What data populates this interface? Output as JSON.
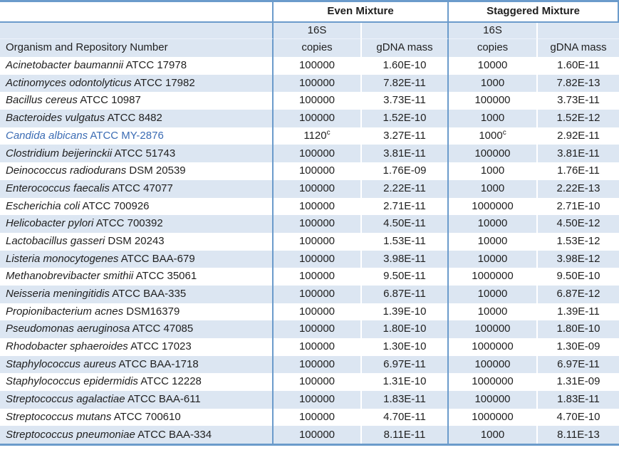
{
  "colors": {
    "border_blue": "#6b9bcb",
    "stripe_blue": "#dce6f2",
    "accent_blue": "#3b6cb4",
    "text": "#1f1f1f"
  },
  "table": {
    "organism_header": "Organism and Repository Number",
    "group_headers": {
      "even": "Even Mixture",
      "staggered": "Staggered Mixture"
    },
    "subheader_16s": "16S",
    "copies_label": "copies",
    "gdna_label": "gDNA mass",
    "rows": [
      {
        "genus_species": "Acinetobacter baumannii",
        "repository": "ATCC 17978",
        "even_copies": "100000",
        "even_copies_sup": "",
        "even_mass": "1.60E-10",
        "stag_copies": "10000",
        "stag_copies_sup": "",
        "stag_mass": "1.60E-11",
        "accent": false
      },
      {
        "genus_species": "Actinomyces odontolyticus",
        "repository": "ATCC 17982",
        "even_copies": "100000",
        "even_copies_sup": "",
        "even_mass": "7.82E-11",
        "stag_copies": "1000",
        "stag_copies_sup": "",
        "stag_mass": "7.82E-13",
        "accent": false
      },
      {
        "genus_species": "Bacillus cereus",
        "repository": "ATCC 10987",
        "even_copies": "100000",
        "even_copies_sup": "",
        "even_mass": "3.73E-11",
        "stag_copies": "100000",
        "stag_copies_sup": "",
        "stag_mass": "3.73E-11",
        "accent": false
      },
      {
        "genus_species": "Bacteroides vulgatus",
        "repository": "ATCC 8482",
        "even_copies": "100000",
        "even_copies_sup": "",
        "even_mass": "1.52E-10",
        "stag_copies": "1000",
        "stag_copies_sup": "",
        "stag_mass": "1.52E-12",
        "accent": false
      },
      {
        "genus_species": "Candida albicans",
        "repository": "ATCC MY-2876",
        "even_copies": "1120",
        "even_copies_sup": "c",
        "even_mass": "3.27E-11",
        "stag_copies": "1000",
        "stag_copies_sup": "c",
        "stag_mass": "2.92E-11",
        "accent": true
      },
      {
        "genus_species": "Clostridium beijerinckii",
        "repository": "ATCC 51743",
        "even_copies": "100000",
        "even_copies_sup": "",
        "even_mass": "3.81E-11",
        "stag_copies": "100000",
        "stag_copies_sup": "",
        "stag_mass": "3.81E-11",
        "accent": false
      },
      {
        "genus_species": "Deinococcus radiodurans",
        "repository": "DSM 20539",
        "even_copies": "100000",
        "even_copies_sup": "",
        "even_mass": "1.76E-09",
        "stag_copies": "1000",
        "stag_copies_sup": "",
        "stag_mass": "1.76E-11",
        "accent": false
      },
      {
        "genus_species": "Enterococcus faecalis",
        "repository": "ATCC 47077",
        "even_copies": "100000",
        "even_copies_sup": "",
        "even_mass": "2.22E-11",
        "stag_copies": "1000",
        "stag_copies_sup": "",
        "stag_mass": "2.22E-13",
        "accent": false
      },
      {
        "genus_species": "Escherichia coli",
        "repository": "ATCC 700926",
        "even_copies": "100000",
        "even_copies_sup": "",
        "even_mass": "2.71E-11",
        "stag_copies": "1000000",
        "stag_copies_sup": "",
        "stag_mass": "2.71E-10",
        "accent": false
      },
      {
        "genus_species": "Helicobacter pylori",
        "repository": "ATCC 700392",
        "even_copies": "100000",
        "even_copies_sup": "",
        "even_mass": "4.50E-11",
        "stag_copies": "10000",
        "stag_copies_sup": "",
        "stag_mass": "4.50E-12",
        "accent": false
      },
      {
        "genus_species": "Lactobacillus gasseri",
        "repository": "DSM 20243",
        "even_copies": "100000",
        "even_copies_sup": "",
        "even_mass": "1.53E-11",
        "stag_copies": "10000",
        "stag_copies_sup": "",
        "stag_mass": "1.53E-12",
        "accent": false
      },
      {
        "genus_species": "Listeria monocytogenes",
        "repository": "ATCC BAA-679",
        "even_copies": "100000",
        "even_copies_sup": "",
        "even_mass": "3.98E-11",
        "stag_copies": "10000",
        "stag_copies_sup": "",
        "stag_mass": "3.98E-12",
        "accent": false
      },
      {
        "genus_species": "Methanobrevibacter smithii",
        "repository": "ATCC 35061",
        "even_copies": "100000",
        "even_copies_sup": "",
        "even_mass": "9.50E-11",
        "stag_copies": "1000000",
        "stag_copies_sup": "",
        "stag_mass": "9.50E-10",
        "accent": false
      },
      {
        "genus_species": "Neisseria meningitidis",
        "repository": "ATCC BAA-335",
        "even_copies": "100000",
        "even_copies_sup": "",
        "even_mass": "6.87E-11",
        "stag_copies": "10000",
        "stag_copies_sup": "",
        "stag_mass": "6.87E-12",
        "accent": false
      },
      {
        "genus_species": "Propionibacterium acnes",
        "repository": "DSM16379",
        "even_copies": "100000",
        "even_copies_sup": "",
        "even_mass": "1.39E-10",
        "stag_copies": "10000",
        "stag_copies_sup": "",
        "stag_mass": "1.39E-11",
        "accent": false
      },
      {
        "genus_species": "Pseudomonas aeruginosa",
        "repository": "ATCC 47085",
        "even_copies": "100000",
        "even_copies_sup": "",
        "even_mass": "1.80E-10",
        "stag_copies": "100000",
        "stag_copies_sup": "",
        "stag_mass": "1.80E-10",
        "accent": false
      },
      {
        "genus_species": "Rhodobacter sphaeroides",
        "repository": "ATCC 17023",
        "even_copies": "100000",
        "even_copies_sup": "",
        "even_mass": "1.30E-10",
        "stag_copies": "1000000",
        "stag_copies_sup": "",
        "stag_mass": "1.30E-09",
        "accent": false
      },
      {
        "genus_species": "Staphylococcus aureus",
        "repository": "ATCC BAA-1718",
        "even_copies": "100000",
        "even_copies_sup": "",
        "even_mass": "6.97E-11",
        "stag_copies": "100000",
        "stag_copies_sup": "",
        "stag_mass": "6.97E-11",
        "accent": false
      },
      {
        "genus_species": "Staphylococcus epidermidis",
        "repository": "ATCC 12228",
        "even_copies": "100000",
        "even_copies_sup": "",
        "even_mass": "1.31E-10",
        "stag_copies": "1000000",
        "stag_copies_sup": "",
        "stag_mass": "1.31E-09",
        "accent": false
      },
      {
        "genus_species": "Streptococcus agalactiae",
        "repository": "ATCC BAA-611",
        "even_copies": "100000",
        "even_copies_sup": "",
        "even_mass": "1.83E-11",
        "stag_copies": "100000",
        "stag_copies_sup": "",
        "stag_mass": "1.83E-11",
        "accent": false
      },
      {
        "genus_species": "Streptococcus mutans",
        "repository": "ATCC 700610",
        "even_copies": "100000",
        "even_copies_sup": "",
        "even_mass": "4.70E-11",
        "stag_copies": "1000000",
        "stag_copies_sup": "",
        "stag_mass": "4.70E-10",
        "accent": false
      },
      {
        "genus_species": "Streptococcus pneumoniae",
        "repository": "ATCC BAA-334",
        "even_copies": "100000",
        "even_copies_sup": "",
        "even_mass": "8.11E-11",
        "stag_copies": "1000",
        "stag_copies_sup": "",
        "stag_mass": "8.11E-13",
        "accent": false
      }
    ]
  }
}
